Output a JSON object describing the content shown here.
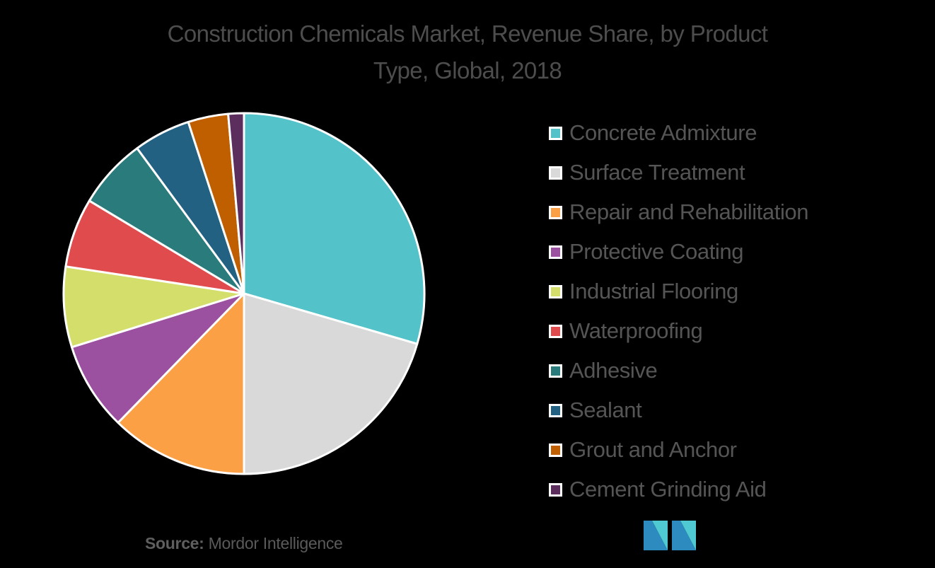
{
  "chart_data": {
    "type": "pie",
    "title": "Construction Chemicals Market, Revenue Share, by Product Type, Global, 2018",
    "title_lines": [
      "Construction Chemicals Market, Revenue Share, by Product",
      "Type, Global, 2018"
    ],
    "units": "% share (estimated from slice angles)",
    "legend_position": "right",
    "start_angle": "12 o'clock, clockwise",
    "categories": [
      "Concrete Admixture",
      "Surface Treatment",
      "Repair and Rehabilitation",
      "Protective Coating",
      "Industrial Flooring",
      "Waterproofing",
      "Adhesive",
      "Sealant",
      "Grout and Anchor",
      "Cement Grinding Aid"
    ],
    "values": [
      29.5,
      20.5,
      12.3,
      7.9,
      7.2,
      6.2,
      6.3,
      5.1,
      3.6,
      1.4
    ],
    "colors": [
      "#53c3c9",
      "#d9d9d9",
      "#fba045",
      "#9b519f",
      "#d3df6a",
      "#e04b4d",
      "#2a7b7b",
      "#226182",
      "#bf5f00",
      "#5b2e5e"
    ]
  },
  "title": {
    "line1": "Construction Chemicals Market, Revenue Share, by Product",
    "line2": "Type, Global, 2018"
  },
  "legend": {
    "items": [
      {
        "label": "Concrete Admixture",
        "color": "#53c3c9"
      },
      {
        "label": "Surface Treatment",
        "color": "#d9d9d9"
      },
      {
        "label": "Repair and Rehabilitation",
        "color": "#fba045"
      },
      {
        "label": "Protective Coating",
        "color": "#9b519f"
      },
      {
        "label": "Industrial Flooring",
        "color": "#d3df6a"
      },
      {
        "label": "Waterproofing",
        "color": "#e04b4d"
      },
      {
        "label": "Adhesive",
        "color": "#2a7b7b"
      },
      {
        "label": "Sealant",
        "color": "#226182"
      },
      {
        "label": "Grout and Anchor",
        "color": "#bf5f00"
      },
      {
        "label": "Cement Grinding Aid",
        "color": "#5b2e5e"
      }
    ]
  },
  "footer": {
    "source_label": "Source:",
    "source_value": "Mordor Intelligence",
    "logo_icon": "mordor-intelligence-logo-icon"
  },
  "colors": {
    "background": "#000000",
    "text": "#4d4d4d",
    "slice_border": "#ffffff",
    "logo_dark": "#2e8bc0",
    "logo_light": "#4fc9d2"
  }
}
